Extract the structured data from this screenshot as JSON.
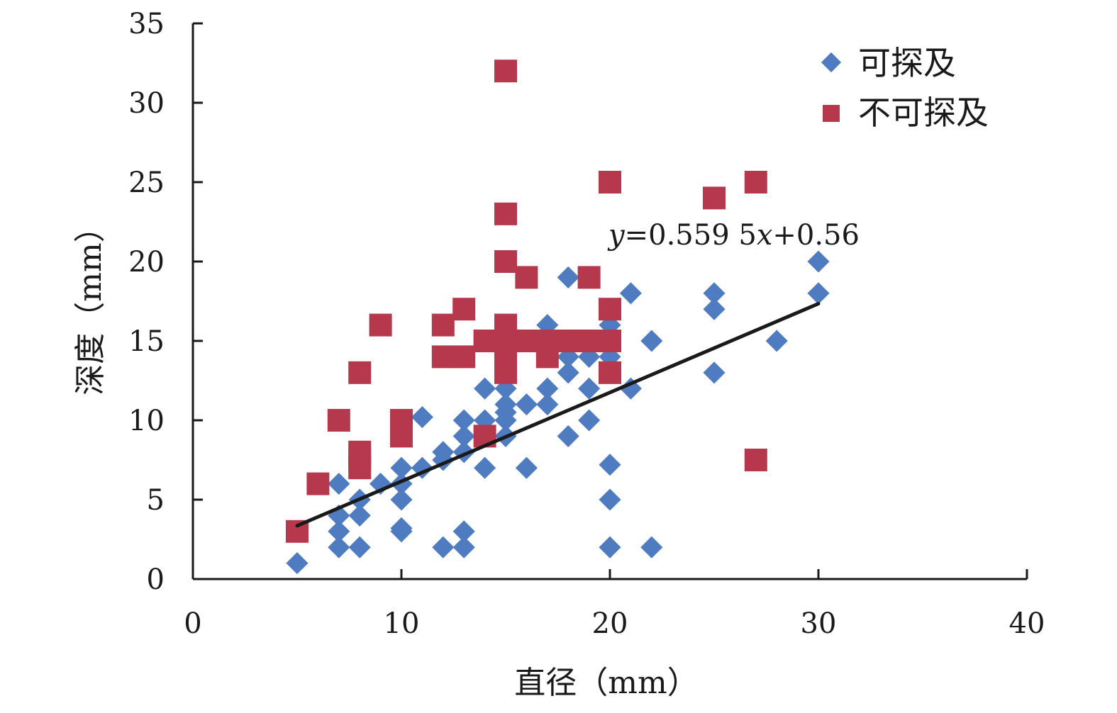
{
  "chart_data": {
    "type": "scatter",
    "xlabel": "直径（mm）",
    "ylabel": "深度（mm）",
    "xlim": [
      0,
      40
    ],
    "ylim": [
      0,
      35
    ],
    "xticks": [
      "0",
      "10",
      "20",
      "30",
      "40"
    ],
    "yticks": [
      "0",
      "5",
      "10",
      "15",
      "20",
      "25",
      "30",
      "35"
    ],
    "grid": false,
    "legend_position": "top-right",
    "series": [
      {
        "name": "可探及",
        "marker": "diamond",
        "color": "#4f7cc1",
        "points": [
          [
            5,
            1
          ],
          [
            7,
            2
          ],
          [
            7,
            3
          ],
          [
            7,
            4
          ],
          [
            7,
            6
          ],
          [
            8,
            2
          ],
          [
            8,
            4
          ],
          [
            8,
            5
          ],
          [
            9,
            6
          ],
          [
            10,
            3
          ],
          [
            10,
            3.2
          ],
          [
            10,
            5
          ],
          [
            10,
            6
          ],
          [
            10,
            7
          ],
          [
            11,
            7
          ],
          [
            11,
            10.2
          ],
          [
            12,
            2
          ],
          [
            12,
            7.5
          ],
          [
            12,
            8
          ],
          [
            13,
            2
          ],
          [
            13,
            3
          ],
          [
            13,
            8
          ],
          [
            13,
            9
          ],
          [
            13,
            10
          ],
          [
            14,
            7
          ],
          [
            14,
            10
          ],
          [
            14,
            12
          ],
          [
            15,
            9
          ],
          [
            15,
            10
          ],
          [
            15,
            10.5
          ],
          [
            15,
            11
          ],
          [
            15,
            12
          ],
          [
            16,
            7
          ],
          [
            16,
            11
          ],
          [
            17,
            11
          ],
          [
            17,
            12
          ],
          [
            17,
            16
          ],
          [
            18,
            9
          ],
          [
            18,
            13
          ],
          [
            18,
            14
          ],
          [
            18,
            19
          ],
          [
            19,
            10
          ],
          [
            19,
            12
          ],
          [
            19,
            14
          ],
          [
            20,
            2
          ],
          [
            20,
            5
          ],
          [
            20,
            7.2
          ],
          [
            20,
            14
          ],
          [
            20,
            16
          ],
          [
            21,
            12
          ],
          [
            21,
            18
          ],
          [
            22,
            2
          ],
          [
            22,
            15
          ],
          [
            25,
            13
          ],
          [
            25,
            17
          ],
          [
            25,
            18
          ],
          [
            28,
            15
          ],
          [
            30,
            18
          ],
          [
            30,
            20
          ]
        ]
      },
      {
        "name": "不可探及",
        "marker": "square",
        "color": "#b5384c",
        "points": [
          [
            5,
            3
          ],
          [
            6,
            6
          ],
          [
            7,
            10
          ],
          [
            8,
            7
          ],
          [
            8,
            7.5
          ],
          [
            8,
            8
          ],
          [
            8,
            13
          ],
          [
            9,
            16
          ],
          [
            10,
            9
          ],
          [
            10,
            10
          ],
          [
            12,
            14
          ],
          [
            12,
            16
          ],
          [
            13,
            14
          ],
          [
            13,
            17
          ],
          [
            14,
            9
          ],
          [
            14,
            15
          ],
          [
            15,
            13
          ],
          [
            15,
            14
          ],
          [
            15,
            15
          ],
          [
            15,
            16
          ],
          [
            15,
            20
          ],
          [
            15,
            23
          ],
          [
            15,
            32
          ],
          [
            16,
            15
          ],
          [
            16,
            19
          ],
          [
            17,
            14
          ],
          [
            17,
            15
          ],
          [
            18,
            15
          ],
          [
            19,
            15
          ],
          [
            19,
            19
          ],
          [
            20,
            13
          ],
          [
            20,
            15
          ],
          [
            20,
            17
          ],
          [
            20,
            25
          ],
          [
            25,
            24
          ],
          [
            27,
            7.5
          ],
          [
            27,
            25
          ]
        ]
      }
    ],
    "trendline": {
      "slope": 0.5595,
      "intercept": 0.56,
      "x_range": [
        5,
        30
      ],
      "color": "#1a1a1a",
      "equation_label": "y=0.559 5x+0.56"
    }
  }
}
